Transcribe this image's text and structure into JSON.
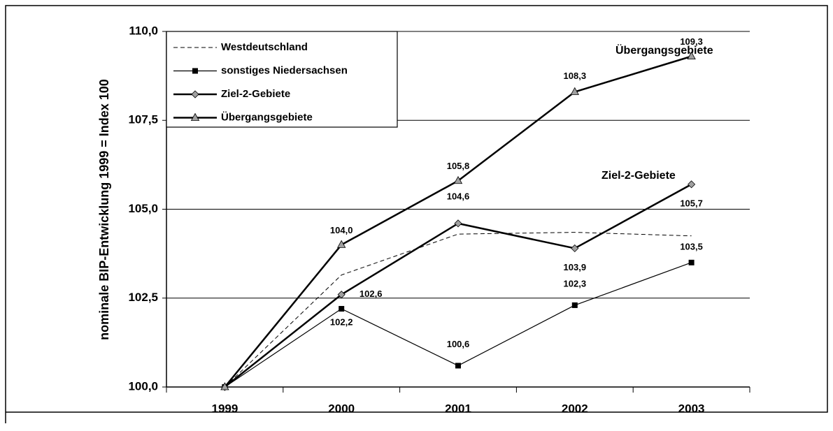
{
  "chart_data": {
    "type": "line",
    "ylabel": "nominale BIP-Entwicklung 1999 = Index 100",
    "categories": [
      "1999",
      "2000",
      "2001",
      "2002",
      "2003"
    ],
    "series": [
      {
        "name": "Westdeutschland",
        "color": "#000000",
        "values": [
          100,
          103.15,
          104.3,
          104.35,
          104.25
        ]
      },
      {
        "name": "sonstiges Niedersachsen",
        "color": "#000000",
        "values": [
          100,
          102.2,
          100.6,
          102.3,
          103.5
        ],
        "value_labels": [
          null,
          "102,2",
          "100,6",
          "102,3",
          "103,5"
        ]
      },
      {
        "name": "Ziel-2-Gebiete",
        "color": "#a0a0a0",
        "values": [
          100,
          102.6,
          104.6,
          103.9,
          105.7
        ],
        "value_labels": [
          null,
          "102,6",
          "104,6",
          "103,9",
          "105,7"
        ]
      },
      {
        "name": "Übergangsgebiete",
        "color": "#a0a0a0",
        "values": [
          100,
          104.0,
          105.8,
          108.3,
          109.3
        ],
        "value_labels": [
          null,
          "104,0",
          "105,8",
          "108,3",
          "109,3"
        ]
      }
    ],
    "annotations": [
      "Übergangsgebiete",
      "Ziel-2-Gebiete"
    ],
    "ylim": [
      100,
      110
    ],
    "yticks": [
      {
        "value": 100,
        "label": "100,0"
      },
      {
        "value": 102.5,
        "label": "102,5"
      },
      {
        "value": 105,
        "label": "105,0"
      },
      {
        "value": 107.5,
        "label": "107,5"
      },
      {
        "value": 110,
        "label": "110,0"
      }
    ],
    "grid": true
  }
}
